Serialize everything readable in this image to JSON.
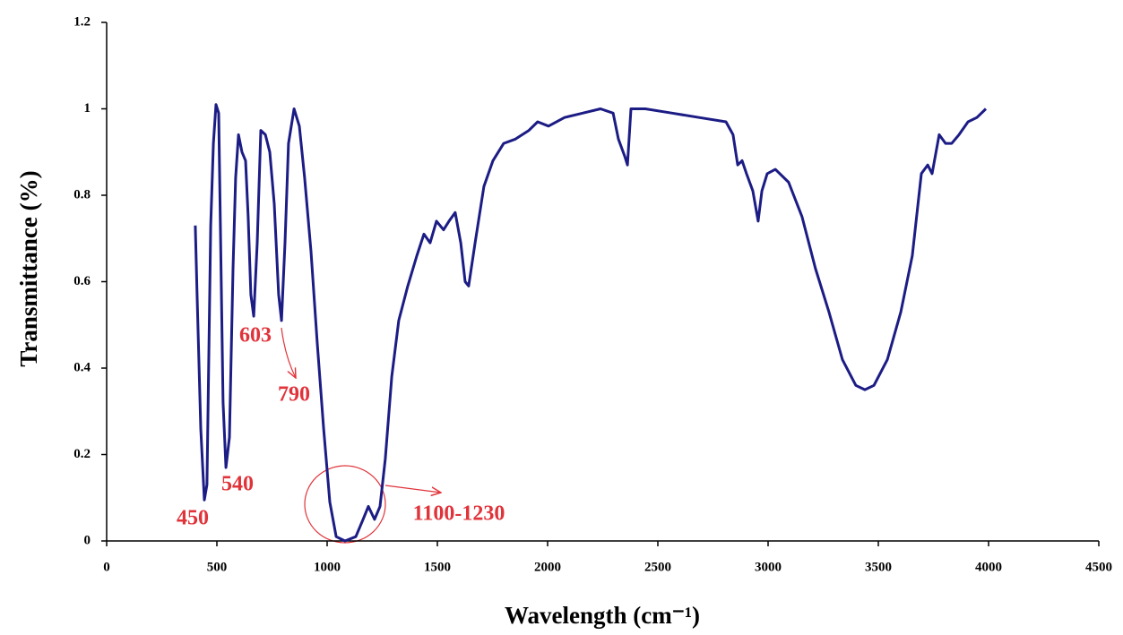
{
  "chart_data": {
    "type": "line",
    "xlabel": "Wavelength (cm⁻¹)",
    "ylabel": "Transmittance (%)",
    "annotations": [
      "450",
      "540",
      "603",
      "790",
      "1100-1230"
    ],
    "color": "#1c1c85",
    "x": [
      402,
      410,
      427,
      443,
      455,
      472,
      484,
      496,
      508,
      516,
      528,
      541,
      557,
      573,
      585,
      598,
      614,
      630,
      642,
      654,
      667,
      683,
      699,
      720,
      740,
      760,
      780,
      793,
      809,
      825,
      850,
      874,
      898,
      927,
      955,
      984,
      1012,
      1041,
      1081,
      1130,
      1163,
      1187,
      1215,
      1240,
      1264,
      1293,
      1325,
      1366,
      1407,
      1439,
      1467,
      1496,
      1528,
      1553,
      1581,
      1606,
      1626,
      1642,
      1671,
      1711,
      1752,
      1801,
      1854,
      1915,
      1955,
      2004,
      2077,
      2159,
      2240,
      2297,
      2321,
      2350,
      2362,
      2378,
      2443,
      2565,
      2687,
      2809,
      2841,
      2862,
      2882,
      2902,
      2931,
      2955,
      2972,
      2996,
      3033,
      3093,
      3154,
      3215,
      3276,
      3337,
      3398,
      3439,
      3480,
      3541,
      3602,
      3654,
      3695,
      3724,
      3744,
      3776,
      3805,
      3833,
      3866,
      3907,
      3947,
      3988
    ],
    "values": [
      0.73,
      0.57,
      0.26,
      0.095,
      0.13,
      0.73,
      0.92,
      1.01,
      0.99,
      0.73,
      0.32,
      0.17,
      0.24,
      0.63,
      0.84,
      0.94,
      0.9,
      0.88,
      0.75,
      0.57,
      0.52,
      0.69,
      0.95,
      0.94,
      0.9,
      0.78,
      0.57,
      0.51,
      0.69,
      0.92,
      1.0,
      0.96,
      0.84,
      0.67,
      0.46,
      0.26,
      0.09,
      0.01,
      0.0,
      0.01,
      0.05,
      0.08,
      0.05,
      0.08,
      0.19,
      0.38,
      0.51,
      0.59,
      0.66,
      0.71,
      0.69,
      0.74,
      0.72,
      0.74,
      0.76,
      0.69,
      0.6,
      0.59,
      0.69,
      0.82,
      0.88,
      0.92,
      0.93,
      0.95,
      0.97,
      0.96,
      0.98,
      0.99,
      1.0,
      0.99,
      0.93,
      0.89,
      0.87,
      1.0,
      1.0,
      0.99,
      0.98,
      0.97,
      0.94,
      0.87,
      0.88,
      0.85,
      0.81,
      0.74,
      0.81,
      0.85,
      0.86,
      0.83,
      0.75,
      0.63,
      0.53,
      0.42,
      0.36,
      0.35,
      0.36,
      0.42,
      0.53,
      0.66,
      0.85,
      0.87,
      0.85,
      0.94,
      0.92,
      0.92,
      0.94,
      0.97,
      0.98,
      1.0
    ],
    "xlim": [
      0,
      4500
    ],
    "xticks": [
      0,
      500,
      1000,
      1500,
      2000,
      2500,
      3000,
      3500,
      4000,
      4500
    ],
    "ylim": [
      0,
      1.2
    ],
    "yticks": [
      0,
      0.2,
      0.4,
      0.6,
      0.8,
      1,
      1.2
    ],
    "grid": false
  }
}
